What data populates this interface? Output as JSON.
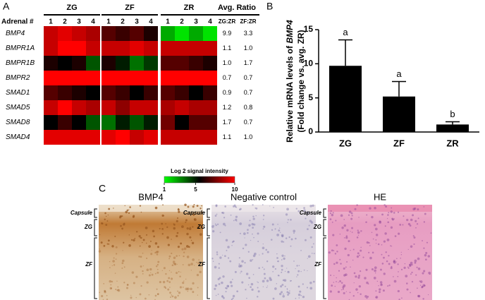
{
  "chart_data": [
    {
      "type": "heatmap",
      "panel": "A",
      "groups": [
        {
          "name": "ZG",
          "samples": [
            1,
            2,
            3,
            4
          ]
        },
        {
          "name": "ZF",
          "samples": [
            1,
            2,
            3,
            4
          ]
        },
        {
          "name": "ZR",
          "samples": [
            1,
            2,
            3,
            4
          ]
        }
      ],
      "row_header": "Adrenal #",
      "ratio_title": "Avg. Ratio",
      "ratio_headers": [
        "ZG:ZR",
        "ZF:ZR"
      ],
      "rows": [
        {
          "name": "BMP4",
          "values": [
            9,
            9.5,
            9,
            8.5,
            7,
            6.5,
            7,
            6,
            2.5,
            1.5,
            2.5,
            1.5
          ],
          "ratios": [
            "9.9",
            "3.3"
          ]
        },
        {
          "name": "BMPR1A",
          "values": [
            9,
            10,
            10,
            9,
            9,
            9,
            9.5,
            9,
            9,
            9,
            9,
            9
          ],
          "ratios": [
            "1.1",
            "1.0"
          ]
        },
        {
          "name": "BMPR1B",
          "values": [
            6,
            5.5,
            6,
            4,
            6,
            5,
            3.5,
            4.5,
            7,
            7,
            6.5,
            6
          ],
          "ratios": [
            "1.0",
            "1.7"
          ]
        },
        {
          "name": "BMPR2",
          "values": [
            10,
            10,
            10,
            10,
            10,
            10,
            10,
            10,
            10,
            10,
            10,
            10
          ],
          "ratios": [
            "0.7",
            "0.7"
          ]
        },
        {
          "name": "SMAD1",
          "values": [
            7,
            6.5,
            6,
            5.5,
            7,
            6.5,
            5.5,
            6.5,
            7,
            6.5,
            5.5,
            6.5
          ],
          "ratios": [
            "0.9",
            "0.7"
          ]
        },
        {
          "name": "SMAD5",
          "values": [
            9,
            10,
            9,
            8.5,
            9,
            8,
            9,
            9,
            8.5,
            9,
            8.5,
            8.5
          ],
          "ratios": [
            "1.2",
            "0.8"
          ]
        },
        {
          "name": "SMAD8",
          "values": [
            5.5,
            6.5,
            5.5,
            4,
            3.5,
            5,
            4,
            5,
            7.5,
            5.5,
            7,
            7
          ],
          "ratios": [
            "1.7",
            "0.7"
          ]
        },
        {
          "name": "SMAD4",
          "values": [
            9.5,
            9.5,
            9.5,
            9.5,
            9.5,
            10,
            9,
            9.5,
            9,
            9,
            9,
            9
          ],
          "ratios": [
            "1.1",
            "1.0"
          ]
        }
      ],
      "colorbar": {
        "title": "Log 2 signal intensity",
        "range": [
          1,
          10
        ],
        "ticks": [
          1,
          5,
          10
        ],
        "colors": [
          "#00ff00",
          "#000000",
          "#ff0000"
        ]
      }
    },
    {
      "type": "bar",
      "panel": "B",
      "categories": [
        "ZG",
        "ZF",
        "ZR"
      ],
      "values": [
        9.7,
        5.2,
        1.1
      ],
      "errors": [
        3.8,
        2.2,
        0.4
      ],
      "annotations": [
        "a",
        "a",
        "b"
      ],
      "ylabel": [
        "Relative mRNA levels of",
        "BMP4",
        "(Fold change vs. avg. ZR)"
      ],
      "ylim": [
        0,
        15
      ],
      "yticks": [
        0,
        5,
        10,
        15
      ],
      "color": "#000000"
    }
  ],
  "panel_c": {
    "panel": "C",
    "images": [
      {
        "title": "BMP4",
        "zones": [
          "Capsule",
          "ZG",
          "ZF"
        ]
      },
      {
        "title": "Negative control",
        "zones": [
          "Capsule",
          "ZG",
          "ZF"
        ]
      },
      {
        "title": "HE",
        "zones": [
          "Capsule",
          "ZG",
          "ZF"
        ]
      }
    ]
  }
}
